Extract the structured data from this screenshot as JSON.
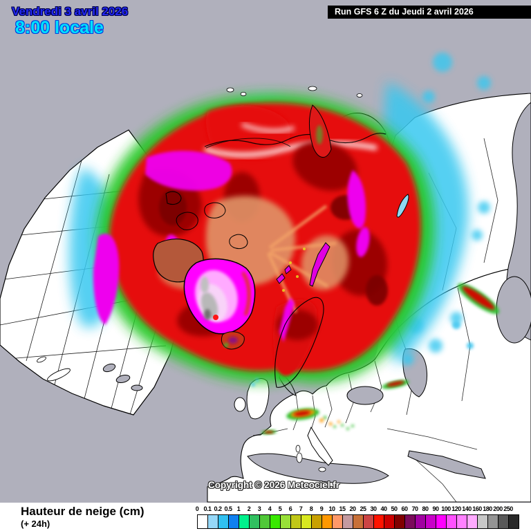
{
  "header": {
    "date": "Vendredi 3 avril 2026",
    "time": "8:00 locale"
  },
  "run_bar": {
    "label": "Run GFS 6 Z du Jeudi 2 avril 2026"
  },
  "map": {
    "copyright": "Copyright © 2026 Meteociel.fr",
    "projection": "polar-stereographic-northern-hemisphere"
  },
  "footer": {
    "param": "Hauteur de neige (cm)",
    "validity": "(+ 24h)"
  },
  "scale": {
    "unit": "cm",
    "ticks": [
      "0",
      "0.1",
      "0.2",
      "0.5",
      "1",
      "2",
      "3",
      "4",
      "5",
      "6",
      "7",
      "8",
      "9",
      "10",
      "15",
      "20",
      "25",
      "30",
      "40",
      "50",
      "60",
      "70",
      "80",
      "90",
      "100",
      "120",
      "140",
      "160",
      "180",
      "200",
      "250"
    ],
    "colors": [
      "#ffffff",
      "#96d8f8",
      "#30c0f0",
      "#1080f0",
      "#00f08c",
      "#30c060",
      "#50c838",
      "#38e800",
      "#98e038",
      "#c0c818",
      "#d8e820",
      "#c8a000",
      "#ff9800",
      "#ff9868",
      "#c49aa0",
      "#c87038",
      "#cc4444",
      "#ff1400",
      "#cc0000",
      "#800000",
      "#7a0a5a",
      "#a000a0",
      "#c800c8",
      "#ff00ff",
      "#ff50ff",
      "#ff80ff",
      "#ffaaff",
      "#c8c8c8",
      "#949494",
      "#585858",
      "#282828"
    ]
  },
  "colors": {
    "sea_background": "#b0b0bc",
    "land": "#ffffff",
    "coastline": "#000000",
    "date_text": "#2228f0",
    "time_text": "#00e2ff",
    "run_bar_bg": "#000000",
    "run_bar_text": "#ffffff",
    "heavy_snow": "#e60808",
    "extreme_snow": "#ff00ff"
  }
}
